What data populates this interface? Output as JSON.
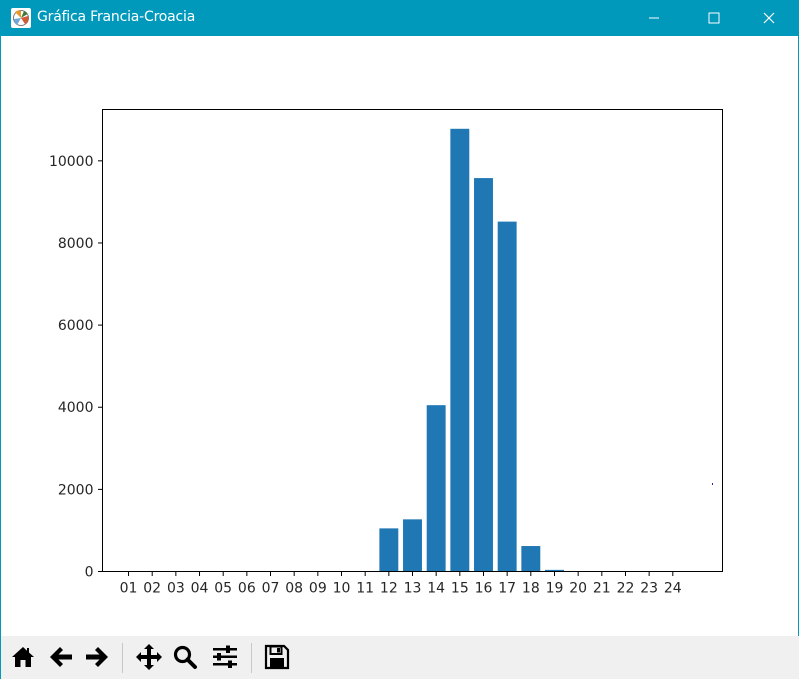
{
  "window": {
    "title": "Gráfica Francia-Croacia",
    "app_icon": "matplotlib-icon",
    "controls": [
      "minimize-icon",
      "maximize-icon",
      "close-icon"
    ]
  },
  "chart_data": {
    "type": "bar",
    "title": "",
    "xlabel": "",
    "ylabel": "",
    "categories": [
      "01",
      "02",
      "03",
      "04",
      "05",
      "06",
      "07",
      "08",
      "09",
      "10",
      "11",
      "12",
      "13",
      "14",
      "15",
      "16",
      "17",
      "18",
      "19",
      "20",
      "21",
      "22",
      "23",
      "24"
    ],
    "values": [
      0,
      0,
      0,
      0,
      0,
      0,
      0,
      0,
      0,
      0,
      0,
      1050,
      1270,
      4050,
      10780,
      9580,
      8520,
      620,
      40,
      0,
      0,
      0,
      0,
      0
    ],
    "ylim": [
      0,
      11250
    ],
    "xlim": [
      -1.1,
      25.1
    ],
    "yticks": [
      0,
      2000,
      4000,
      6000,
      8000,
      10000
    ],
    "bar_color": "#1f77b4",
    "grid": false
  },
  "toolbar": {
    "buttons": [
      {
        "icon": "home-icon"
      },
      {
        "icon": "back-arrow-icon"
      },
      {
        "icon": "forward-arrow-icon"
      },
      {
        "icon": "pan-icon"
      },
      {
        "icon": "zoom-icon"
      },
      {
        "icon": "configure-subplots-icon"
      },
      {
        "icon": "save-icon"
      }
    ]
  }
}
